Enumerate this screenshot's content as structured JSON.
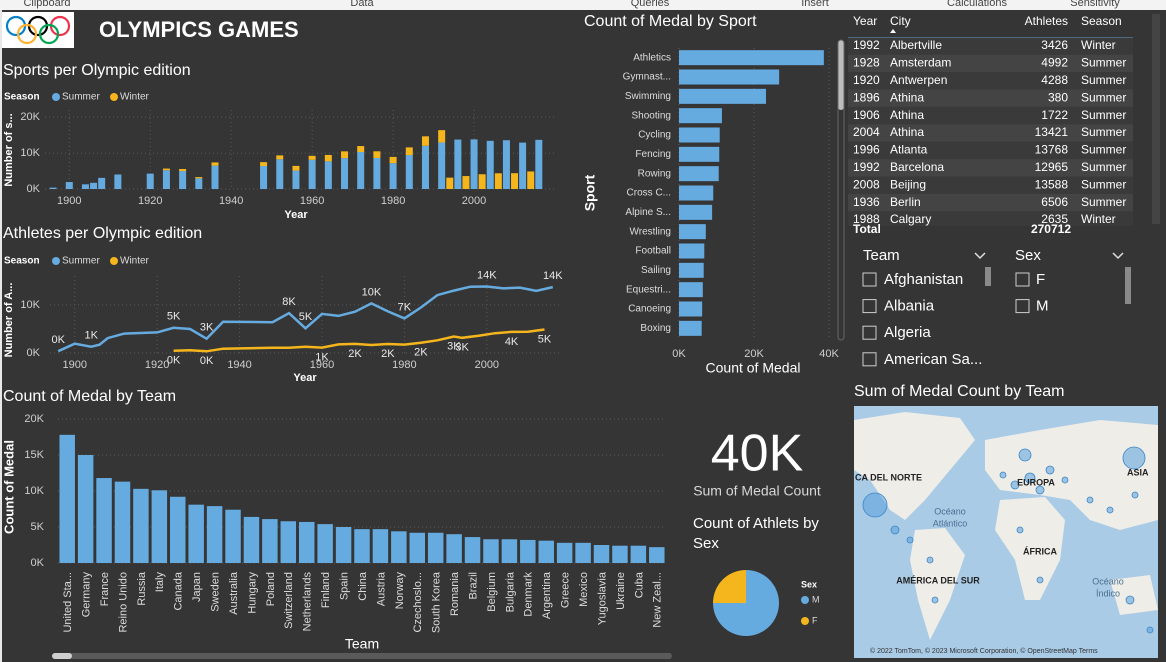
{
  "ribbon": [
    "Clipboard",
    "Data",
    "Queries",
    "Insert",
    "Calculations",
    "Sensitivity"
  ],
  "header": {
    "title": "OLYMPICS GAMES"
  },
  "chart_data": [
    {
      "type": "bar",
      "stacked": true,
      "title": "Sports per Olympic edition",
      "legend_title": "Season",
      "x": [
        1896,
        1900,
        1904,
        1906,
        1908,
        1912,
        1920,
        1924,
        1928,
        1932,
        1936,
        1948,
        1952,
        1956,
        1960,
        1964,
        1968,
        1972,
        1976,
        1980,
        1984,
        1988,
        1992,
        1994,
        1996,
        1998,
        2000,
        2002,
        2004,
        2006,
        2008,
        2010,
        2012,
        2014,
        2016
      ],
      "series": [
        {
          "name": "Summer",
          "color": "#66abe0",
          "values": [
            380,
            1936,
            1301,
            1722,
            3101,
            4040,
            4288,
            5233,
            4992,
            2969,
            6506,
            6405,
            8270,
            5127,
            8119,
            7702,
            8588,
            10304,
            8641,
            7191,
            9454,
            12037,
            12965,
            null,
            13768,
            null,
            13821,
            null,
            13421,
            null,
            13588,
            null,
            12920,
            null,
            13688
          ]
        },
        {
          "name": "Winter",
          "color": "#f5b51c",
          "values": [
            null,
            null,
            null,
            null,
            null,
            null,
            null,
            460,
            582,
            352,
            895,
            1075,
            1088,
            1307,
            1116,
            1778,
            1891,
            1655,
            1861,
            1746,
            2134,
            2635,
            3426,
            3160,
            null,
            3605,
            null,
            4109,
            null,
            4382,
            null,
            4402,
            null,
            4891,
            null
          ]
        }
      ],
      "xlim": [
        1894,
        2020
      ],
      "xticks": [
        1900,
        1920,
        1940,
        1960,
        1980,
        2000
      ],
      "ylim": [
        0,
        22000
      ],
      "yticks": [
        {
          "value": 0,
          "label": "0K"
        },
        {
          "value": 10000,
          "label": "10K"
        },
        {
          "value": 20000,
          "label": "20K"
        }
      ],
      "x_label": "Year",
      "y_label": "Number of s...",
      "grid": true
    },
    {
      "type": "line",
      "title": "Athletes per Olympic edition",
      "legend_title": "Season",
      "series": [
        {
          "name": "Summer",
          "color": "#66abe0",
          "x": [
            1896,
            1900,
            1904,
            1906,
            1908,
            1912,
            1920,
            1924,
            1928,
            1932,
            1936,
            1948,
            1952,
            1956,
            1960,
            1964,
            1968,
            1972,
            1976,
            1980,
            1984,
            1988,
            1992,
            1996,
            2000,
            2004,
            2008,
            2012,
            2016
          ],
          "values": [
            380,
            1936,
            1301,
            1722,
            3101,
            4040,
            4288,
            5233,
            4992,
            2969,
            6506,
            6405,
            8270,
            5127,
            8119,
            7702,
            8588,
            10304,
            8641,
            7191,
            9454,
            12037,
            12965,
            13768,
            13821,
            13421,
            13588,
            12920,
            13688
          ],
          "value_labels": [
            "0K",
            null,
            "1K",
            null,
            null,
            null,
            null,
            "5K",
            null,
            "3K",
            null,
            null,
            "8K",
            "5K",
            null,
            null,
            null,
            "10K",
            null,
            "7K",
            null,
            null,
            null,
            null,
            "14K",
            null,
            null,
            null,
            "14K"
          ]
        },
        {
          "name": "Winter",
          "color": "#f5b51c",
          "x": [
            1924,
            1928,
            1932,
            1936,
            1948,
            1952,
            1956,
            1960,
            1964,
            1968,
            1972,
            1976,
            1980,
            1984,
            1988,
            1992,
            1994,
            1998,
            2002,
            2006,
            2010,
            2014
          ],
          "values": [
            460,
            582,
            352,
            895,
            1075,
            1088,
            1307,
            1116,
            1778,
            1891,
            1655,
            1861,
            1746,
            2134,
            2635,
            3426,
            3160,
            3605,
            4109,
            4382,
            4402,
            4891
          ],
          "value_labels": [
            "0K",
            null,
            "0K",
            null,
            null,
            null,
            null,
            "1K",
            null,
            "2K",
            null,
            "2K",
            null,
            "2K",
            null,
            "3K",
            "3K",
            null,
            null,
            "4K",
            null,
            "5K"
          ]
        }
      ],
      "xlim": [
        1894,
        2018
      ],
      "xticks": [
        1900,
        1920,
        1940,
        1960,
        1980,
        2000
      ],
      "ylim": [
        0,
        16000
      ],
      "yticks": [
        {
          "value": 0,
          "label": "0K"
        },
        {
          "value": 10000,
          "label": "10K"
        }
      ],
      "x_label": "Year",
      "y_label": "Number of A...",
      "grid": true
    },
    {
      "type": "bar",
      "orientation": "horizontal",
      "title": "Count of Medal by Sport",
      "color": "#66abe0",
      "categories": [
        "Athletics",
        "Gymnast...",
        "Swimming",
        "Shooting",
        "Cycling",
        "Fencing",
        "Rowing",
        "Cross C...",
        "Alpine S...",
        "Wrestling",
        "Football",
        "Sailing",
        "Equestri...",
        "Canoeing",
        "Boxing"
      ],
      "values": [
        38624,
        26707,
        23195,
        11448,
        10859,
        10735,
        10595,
        9133,
        8829,
        7154,
        6745,
        6586,
        6344,
        6171,
        6047
      ],
      "xlim": [
        0,
        40000
      ],
      "xticks": [
        {
          "value": 0,
          "label": "0K"
        },
        {
          "value": 20000,
          "label": "20K"
        },
        {
          "value": 40000,
          "label": "40K"
        }
      ],
      "x_label": "Count of Medal",
      "y_label": "Sport",
      "grid": true
    },
    {
      "type": "bar",
      "title": "Count of Medal by Team",
      "color": "#66abe0",
      "categories": [
        "United Sta...",
        "Germany",
        "France",
        "Reino Unido",
        "Russia",
        "Italy",
        "Canada",
        "Japan",
        "Sweden",
        "Australia",
        "Hungary",
        "Poland",
        "Switzerland",
        "Netherlands",
        "Finland",
        "Spain",
        "China",
        "Austria",
        "Norway",
        "Czechoslo...",
        "South Korea",
        "Romania",
        "Brazil",
        "Belgium",
        "Bulgaria",
        "Denmark",
        "Argentina",
        "Greece",
        "Mexico",
        "Yugoslavia",
        "Ukraine",
        "Cuba",
        "New Zeal..."
      ],
      "values": [
        17800,
        15000,
        11800,
        11300,
        10300,
        10100,
        9200,
        8100,
        7900,
        7400,
        6400,
        6100,
        5800,
        5700,
        5400,
        5000,
        4700,
        4700,
        4400,
        4200,
        4200,
        4000,
        3600,
        3300,
        3300,
        3200,
        3100,
        2800,
        2800,
        2500,
        2400,
        2400,
        2200
      ],
      "ylim": [
        0,
        20000
      ],
      "yticks": [
        {
          "value": 0,
          "label": "0K"
        },
        {
          "value": 5000,
          "label": "5K"
        },
        {
          "value": 10000,
          "label": "10K"
        },
        {
          "value": 15000,
          "label": "15K"
        },
        {
          "value": 20000,
          "label": "20K"
        }
      ],
      "x_label": "Team",
      "y_label": "Count of Medal",
      "grid": true
    },
    {
      "type": "pie",
      "title": "Count of Athlets by Sex",
      "legend_title": "Sex",
      "categories": [
        "M",
        "F"
      ],
      "values": [
        75,
        25
      ],
      "colors": [
        "#66abe0",
        "#f5b51c"
      ]
    }
  ],
  "card": {
    "value": "40K",
    "label": "Sum of Medal Count"
  },
  "table": {
    "columns": [
      "Year",
      "City",
      "Athletes",
      "Season"
    ],
    "rows": [
      [
        1992,
        "Albertville",
        3426,
        "Winter"
      ],
      [
        1928,
        "Amsterdam",
        4992,
        "Summer"
      ],
      [
        1920,
        "Antwerpen",
        4288,
        "Summer"
      ],
      [
        1896,
        "Athina",
        380,
        "Summer"
      ],
      [
        1906,
        "Athina",
        1722,
        "Summer"
      ],
      [
        2004,
        "Athina",
        13421,
        "Summer"
      ],
      [
        1996,
        "Atlanta",
        13768,
        "Summer"
      ],
      [
        1992,
        "Barcelona",
        12965,
        "Summer"
      ],
      [
        2008,
        "Beijing",
        13588,
        "Summer"
      ],
      [
        1936,
        "Berlin",
        6506,
        "Summer"
      ],
      [
        1988,
        "Calgary",
        2635,
        "Winter"
      ]
    ],
    "total_label": "Total",
    "total": 270712
  },
  "slicers": [
    {
      "title": "Team",
      "items": [
        "Afghanistan",
        "Albania",
        "Algeria",
        "American Sa..."
      ]
    },
    {
      "title": "Sex",
      "items": [
        "F",
        "M"
      ]
    }
  ],
  "map": {
    "title": "Sum of Medal Count by Team",
    "labels": [
      "CA DEL NORTE",
      "EUROPA",
      "ASIA",
      "Océano",
      "Atlántico",
      "ÁFRICA",
      "AMÉRICA DEL SUR",
      "Océano",
      "Índico"
    ],
    "attribution": "© 2022 TomTom, © 2023 Microsoft Corporation, © OpenStreetMap  Terms"
  }
}
